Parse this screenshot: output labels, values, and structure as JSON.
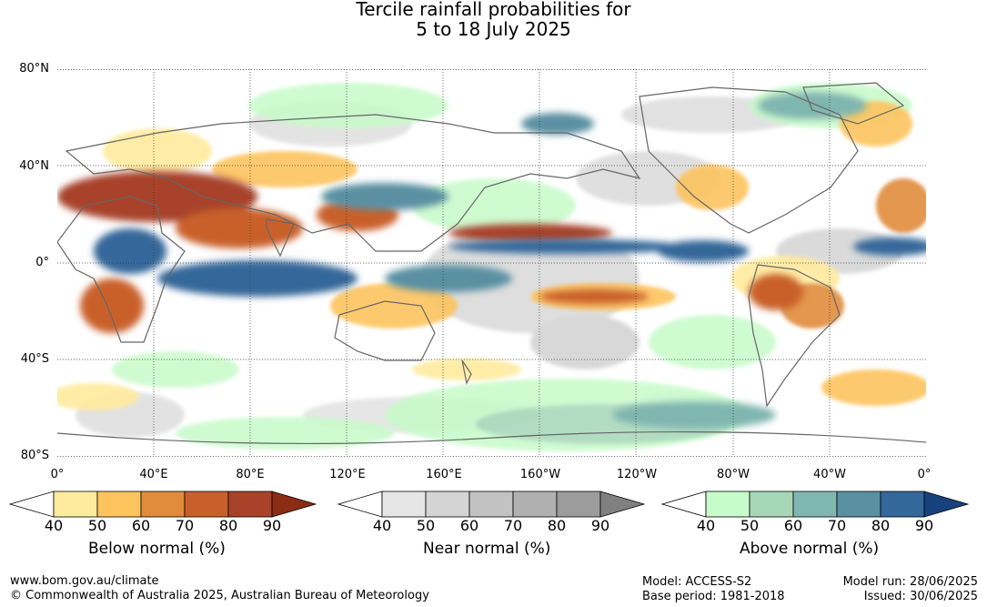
{
  "title": {
    "line1": "Tercile rainfall probabilities for",
    "line2": "5 to 18 July 2025"
  },
  "lat_labels": [
    "80°N",
    "40°N",
    "0°",
    "40°S",
    "80°S"
  ],
  "lon_labels": [
    "0°",
    "40°E",
    "80°E",
    "120°E",
    "160°E",
    "160°W",
    "120°W",
    "80°W",
    "40°W",
    "0°"
  ],
  "legends": [
    {
      "label": "Below normal (%)",
      "ticks": [
        "40",
        "50",
        "60",
        "70",
        "80",
        "90"
      ],
      "colors": [
        "#ffffff",
        "#ffeb9e",
        "#fdc45e",
        "#e08c3c",
        "#c9602c",
        "#a8432a",
        "#8a2d14"
      ]
    },
    {
      "label": "Near normal (%)",
      "ticks": [
        "40",
        "50",
        "60",
        "70",
        "80",
        "90"
      ],
      "colors": [
        "#ffffff",
        "#e6e6e6",
        "#d4d4d4",
        "#c2c2c2",
        "#b0b0b0",
        "#9c9c9c",
        "#808080"
      ]
    },
    {
      "label": "Above normal (%)",
      "ticks": [
        "40",
        "50",
        "60",
        "70",
        "80",
        "90"
      ],
      "colors": [
        "#ffffff",
        "#c7fbc9",
        "#a6d8b8",
        "#80b6b0",
        "#5a90a2",
        "#34679a",
        "#16417c"
      ]
    }
  ],
  "footer": {
    "website": "www.bom.gov.au/climate",
    "copyright": "© Commonwealth of Australia 2025, Australian Bureau of Meteorology",
    "model": "Model: ACCESS-S2",
    "base_period": "Base period: 1981-2018",
    "model_run": "Model run: 28/06/2025",
    "issued": "Issued: 30/06/2025"
  }
}
